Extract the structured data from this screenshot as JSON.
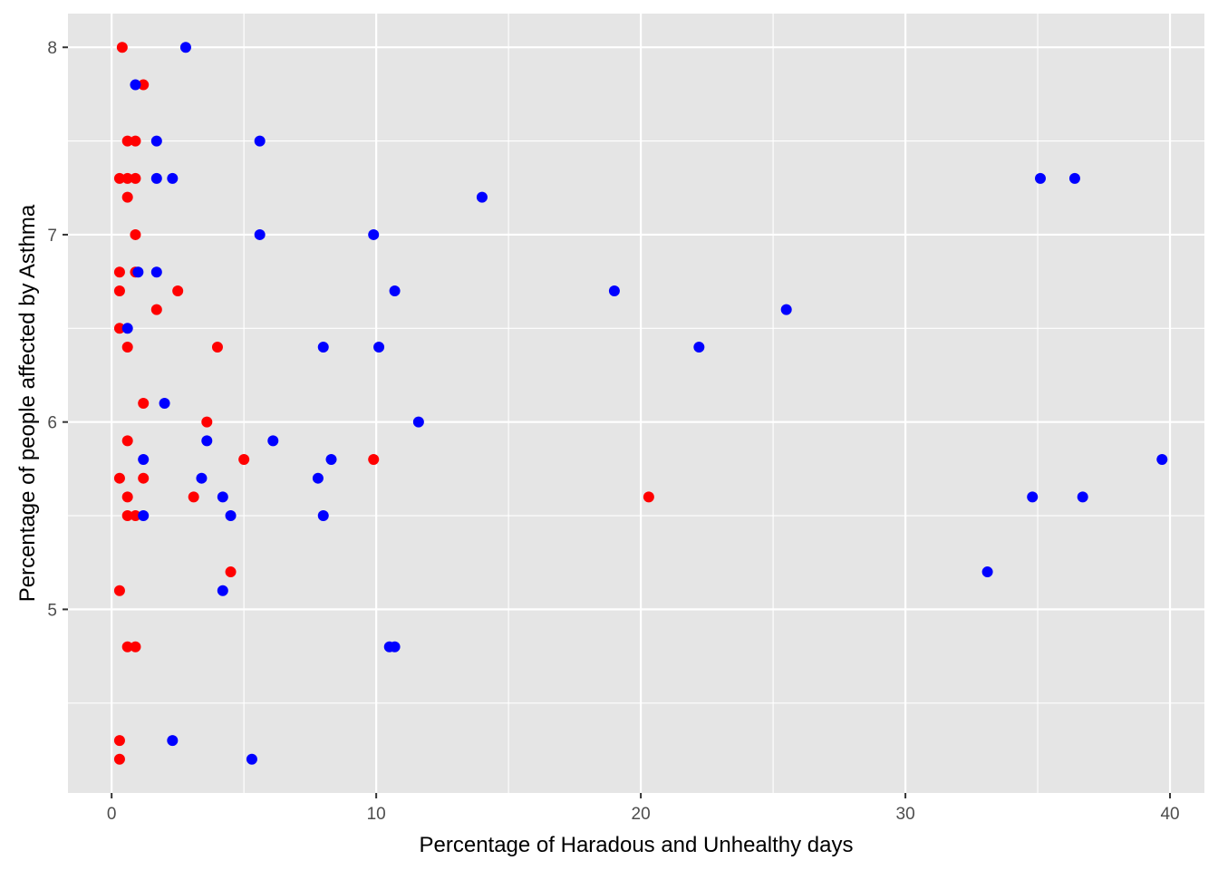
{
  "chart_data": {
    "type": "scatter",
    "title": "",
    "xlabel": "Percentage of Haradous and Unhealthy days",
    "ylabel": "Percentage of people affected by Asthma",
    "xlim": [
      -1.65,
      41.3
    ],
    "ylim": [
      4.02,
      8.18
    ],
    "x_ticks": [
      0,
      10,
      20,
      30,
      40
    ],
    "x_tick_labels": [
      "0",
      "10",
      "20",
      "30",
      "40"
    ],
    "y_ticks": [
      5,
      6,
      7,
      8
    ],
    "y_tick_labels": [
      "5",
      "6",
      "7",
      "8"
    ],
    "grid": true,
    "legend": "none",
    "colors": {
      "panel_background": "#E5E5E5",
      "grid_line": "#FFFFFF",
      "tick_text": "#4D4D4D",
      "title_text": "#000000"
    },
    "series": [
      {
        "color": "#FF0000",
        "points": [
          [
            0.4,
            8.0
          ],
          [
            1.2,
            7.8
          ],
          [
            0.6,
            7.5
          ],
          [
            0.9,
            7.5
          ],
          [
            0.3,
            7.3
          ],
          [
            0.6,
            7.3
          ],
          [
            0.9,
            7.3
          ],
          [
            0.6,
            7.2
          ],
          [
            0.9,
            7.0
          ],
          [
            0.3,
            6.8
          ],
          [
            0.9,
            6.8
          ],
          [
            0.3,
            6.7
          ],
          [
            2.5,
            6.7
          ],
          [
            1.7,
            6.6
          ],
          [
            0.3,
            6.5
          ],
          [
            0.6,
            6.4
          ],
          [
            4.0,
            6.4
          ],
          [
            1.2,
            6.1
          ],
          [
            3.6,
            6.0
          ],
          [
            0.6,
            5.9
          ],
          [
            5.0,
            5.8
          ],
          [
            9.9,
            5.8
          ],
          [
            0.3,
            5.7
          ],
          [
            1.2,
            5.7
          ],
          [
            0.6,
            5.6
          ],
          [
            3.1,
            5.6
          ],
          [
            20.3,
            5.6
          ],
          [
            0.6,
            5.5
          ],
          [
            0.9,
            5.5
          ],
          [
            4.5,
            5.2
          ],
          [
            0.3,
            5.1
          ],
          [
            0.6,
            4.8
          ],
          [
            0.9,
            4.8
          ],
          [
            0.3,
            4.3
          ],
          [
            0.3,
            4.2
          ]
        ]
      },
      {
        "color": "#0000FF",
        "points": [
          [
            2.8,
            8.0
          ],
          [
            0.9,
            7.8
          ],
          [
            1.7,
            7.5
          ],
          [
            5.6,
            7.5
          ],
          [
            1.7,
            7.3
          ],
          [
            2.3,
            7.3
          ],
          [
            35.1,
            7.3
          ],
          [
            36.4,
            7.3
          ],
          [
            14.0,
            7.2
          ],
          [
            5.6,
            7.0
          ],
          [
            9.9,
            7.0
          ],
          [
            1.0,
            6.8
          ],
          [
            1.7,
            6.8
          ],
          [
            10.7,
            6.7
          ],
          [
            19.0,
            6.7
          ],
          [
            25.5,
            6.6
          ],
          [
            0.6,
            6.5
          ],
          [
            8.0,
            6.4
          ],
          [
            10.1,
            6.4
          ],
          [
            22.2,
            6.4
          ],
          [
            2.0,
            6.1
          ],
          [
            11.6,
            6.0
          ],
          [
            3.6,
            5.9
          ],
          [
            6.1,
            5.9
          ],
          [
            1.2,
            5.8
          ],
          [
            8.3,
            5.8
          ],
          [
            39.7,
            5.8
          ],
          [
            3.4,
            5.7
          ],
          [
            7.8,
            5.7
          ],
          [
            4.2,
            5.6
          ],
          [
            34.8,
            5.6
          ],
          [
            36.7,
            5.6
          ],
          [
            1.2,
            5.5
          ],
          [
            4.5,
            5.5
          ],
          [
            8.0,
            5.5
          ],
          [
            33.1,
            5.2
          ],
          [
            4.2,
            5.1
          ],
          [
            10.5,
            4.8
          ],
          [
            10.7,
            4.8
          ],
          [
            2.3,
            4.3
          ],
          [
            5.3,
            4.2
          ]
        ]
      }
    ]
  }
}
